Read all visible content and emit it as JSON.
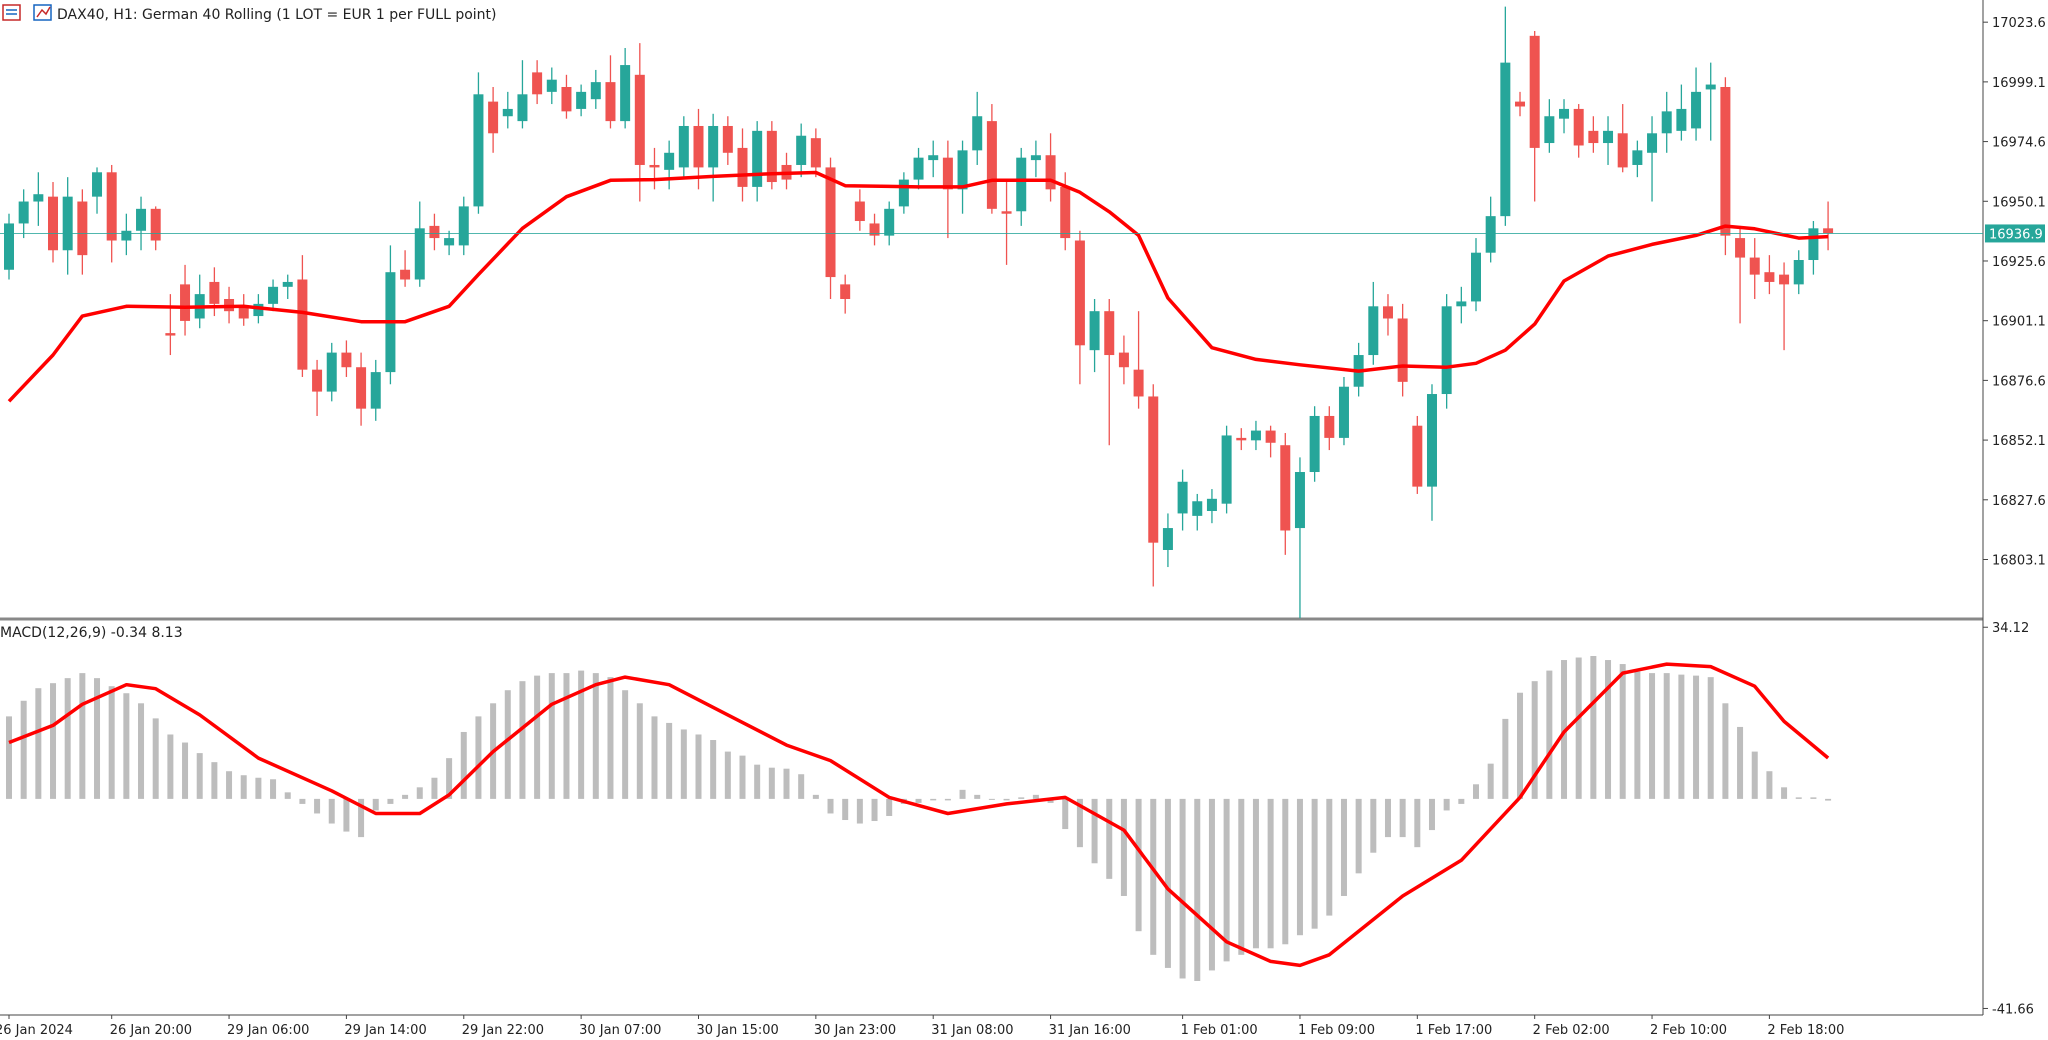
{
  "chart_data": [
    {
      "type": "candlestick",
      "title": "DAX40, H1:  German 40 Rolling (1 LOT = EUR 1 per FULL point)",
      "categories": [
        "26 Jan 2024",
        null,
        null,
        null,
        null,
        null,
        null,
        "26 Jan 20:00",
        null,
        null,
        null,
        null,
        null,
        null,
        null,
        "29 Jan 06:00",
        null,
        null,
        null,
        null,
        null,
        null,
        null,
        "29 Jan 14:00",
        null,
        null,
        null,
        null,
        null,
        null,
        null,
        "29 Jan 22:00",
        null,
        null,
        null,
        null,
        null,
        null,
        null,
        "30 Jan 07:00",
        null,
        null,
        null,
        null,
        null,
        null,
        null,
        "30 Jan 15:00",
        null,
        null,
        null,
        null,
        null,
        null,
        null,
        "30 Jan 23:00",
        null,
        null,
        null,
        null,
        null,
        null,
        null,
        "31 Jan 08:00",
        null,
        null,
        null,
        null,
        null,
        null,
        null,
        "31 Jan 16:00",
        null,
        null,
        null,
        null,
        null,
        null,
        null,
        null,
        "1 Feb 01:00",
        null,
        null,
        null,
        null,
        null,
        null,
        null,
        "1 Feb 09:00",
        null,
        null,
        null,
        null,
        null,
        null,
        null,
        "1 Feb 17:00",
        null,
        null,
        null,
        null,
        null,
        null,
        null,
        "2 Feb 02:00",
        null,
        null,
        null,
        null,
        null,
        null,
        null,
        "2 Feb 10:00",
        null,
        null,
        null,
        null,
        null,
        null,
        null,
        "2 Feb 18:00",
        null,
        null,
        null,
        null
      ],
      "open": [
        16922,
        16941,
        16950,
        16952,
        16930,
        16950,
        16952,
        16962,
        16934,
        16938,
        16947,
        16896,
        16916,
        16902,
        16917,
        16910,
        16907,
        16903,
        16908,
        16915,
        16918,
        16881,
        16872,
        16888,
        16882,
        16865,
        16880,
        16922,
        16918,
        16940,
        16932,
        16932,
        16948,
        16991,
        16985,
        16983,
        17003,
        16995,
        16997,
        16988,
        16992,
        16999,
        16983,
        17002,
        16965,
        16963,
        16964,
        16981,
        16964,
        16981,
        16972,
        16956,
        16979,
        16965,
        16965,
        16976,
        16964,
        16916,
        16950,
        16941,
        16936,
        16948,
        16959,
        16967,
        16968,
        16955,
        16971,
        16983,
        16946,
        16946,
        16967,
        16969,
        16956,
        16934,
        16889,
        16905,
        16888,
        16881,
        16870,
        16807,
        16822,
        16821,
        16823,
        16826,
        16853,
        16852,
        16856,
        16850,
        16816,
        16839,
        16862,
        16853,
        16874,
        16887,
        16907,
        16902,
        16858,
        16833,
        16871,
        16907,
        16909,
        16929,
        16944,
        16991,
        17018,
        16974,
        16984,
        16988,
        16979,
        16974,
        16978,
        16965,
        16970,
        16978,
        16979,
        16980,
        16996,
        16997,
        16935,
        16927,
        16921,
        16920,
        16916,
        16926,
        16939
      ],
      "high": [
        16945,
        16955,
        16962,
        16958,
        16960,
        16955,
        16964,
        16965,
        16945,
        16952,
        16948,
        16912,
        16924,
        16920,
        16923,
        16915,
        16912,
        16912,
        16918,
        16920,
        16928,
        16885,
        16892,
        16893,
        16888,
        16885,
        16932,
        16930,
        16950,
        16945,
        16938,
        16952,
        17003,
        16997,
        16995,
        17008,
        17008,
        17005,
        17002,
        16998,
        17004,
        17010,
        17013,
        17015,
        16972,
        16975,
        16985,
        16988,
        16986,
        16985,
        16980,
        16983,
        16983,
        16970,
        16982,
        16980,
        16968,
        16920,
        16955,
        16945,
        16950,
        16962,
        16972,
        16975,
        16975,
        16975,
        16995,
        16990,
        16958,
        16972,
        16975,
        16978,
        16962,
        16938,
        16910,
        16910,
        16895,
        16905,
        16875,
        16822,
        16840,
        16830,
        16832,
        16858,
        16857,
        16860,
        16858,
        16855,
        16845,
        16866,
        16866,
        16878,
        16892,
        16917,
        16912,
        16908,
        16862,
        16875,
        16912,
        16915,
        16935,
        16952,
        17030,
        16995,
        17020,
        16992,
        16992,
        16990,
        16985,
        16985,
        16990,
        16975,
        16985,
        16995,
        16998,
        17005,
        17007,
        17001,
        16940,
        16935,
        16928,
        16925,
        16930,
        16942,
        16950
      ],
      "low": [
        16918,
        16935,
        16940,
        16925,
        16920,
        16920,
        16945,
        16925,
        16928,
        16930,
        16930,
        16887,
        16895,
        16898,
        16903,
        16900,
        16899,
        16900,
        16905,
        16910,
        16878,
        16862,
        16868,
        16878,
        16858,
        16860,
        16875,
        16915,
        16915,
        16930,
        16928,
        16928,
        16945,
        16970,
        16980,
        16980,
        16990,
        16990,
        16984,
        16985,
        16988,
        16980,
        16980,
        16950,
        16955,
        16955,
        16960,
        16955,
        16950,
        16965,
        16950,
        16950,
        16955,
        16955,
        16960,
        16960,
        16910,
        16904,
        16938,
        16932,
        16932,
        16945,
        16955,
        16960,
        16935,
        16945,
        16965,
        16945,
        16924,
        16940,
        16960,
        16950,
        16930,
        16875,
        16880,
        16850,
        16875,
        16865,
        16792,
        16800,
        16815,
        16815,
        16818,
        16822,
        16848,
        16848,
        16845,
        16805,
        16779,
        16835,
        16848,
        16850,
        16870,
        16883,
        16895,
        16870,
        16830,
        16819,
        16865,
        16900,
        16905,
        16925,
        16940,
        16985,
        16950,
        16970,
        16978,
        16968,
        16970,
        16965,
        16962,
        16960,
        16950,
        16970,
        16975,
        16975,
        16975,
        16928,
        16900,
        16910,
        16912,
        16889,
        16912,
        16920,
        16930
      ],
      "close": [
        16941,
        16950,
        16953,
        16930,
        16952,
        16928,
        16962,
        16934,
        16938,
        16947,
        16934,
        16895,
        16901,
        16912,
        16908,
        16905,
        16902,
        16908,
        16915,
        16917,
        16881,
        16872,
        16888,
        16882,
        16865,
        16880,
        16921,
        16918,
        16939,
        16935,
        16935,
        16948,
        16994,
        16978,
        16988,
        16994,
        16994,
        17000,
        16987,
        16995,
        16999,
        16983,
        17006,
        16965,
        16964,
        16970,
        16981,
        16964,
        16981,
        16970,
        16956,
        16979,
        16958,
        16959,
        16977,
        16964,
        16919,
        16910,
        16942,
        16936,
        16947,
        16959,
        16968,
        16969,
        16955,
        16971,
        16985,
        16947,
        16945,
        16968,
        16969,
        16955,
        16935,
        16891,
        16905,
        16887,
        16882,
        16870,
        16810,
        16816,
        16835,
        16827,
        16828,
        16854,
        16852,
        16856,
        16851,
        16815,
        16839,
        16862,
        16853,
        16874,
        16887,
        16907,
        16902,
        16876,
        16833,
        16871,
        16907,
        16909,
        16929,
        16944,
        17007,
        16989,
        16972,
        16985,
        16988,
        16973,
        16974,
        16979,
        16964,
        16971,
        16978,
        16987,
        16988,
        16995,
        16998,
        16936,
        16927,
        16920,
        16917,
        16916,
        16926,
        16939,
        16937
      ],
      "up_color": "#26a69a",
      "down_color": "#ef5350",
      "overlay": {
        "color": "#ff0000",
        "x": [
          0,
          3,
          5,
          8,
          12,
          16,
          20,
          24,
          27,
          30,
          32,
          35,
          38,
          41,
          44,
          48,
          52,
          55,
          57,
          62,
          65,
          67,
          71,
          73,
          75,
          77,
          79,
          82,
          85,
          88,
          92,
          95,
          98,
          100,
          102,
          104,
          106,
          109,
          112,
          115,
          117,
          119,
          122,
          124
        ],
        "values": [
          16868,
          16887,
          16903,
          16907,
          16906.6,
          16907,
          16904.5,
          16900.7,
          16900.7,
          16907,
          16920,
          16939,
          16952,
          16958.7,
          16959,
          16960.3,
          16961.4,
          16961.9,
          16956.5,
          16956,
          16956,
          16958.7,
          16958.7,
          16953.8,
          16945.8,
          16936.1,
          16910.4,
          16890,
          16885.2,
          16883,
          16880.4,
          16882.5,
          16882,
          16883.6,
          16889,
          16899.7,
          16917.4,
          16927.6,
          16932.4,
          16936.1,
          16939.9,
          16938.8,
          16935,
          16935.6
        ]
      },
      "last_price": 16936.9,
      "last_price_color": "#26a69a",
      "ylim": [
        16779.5,
        17032.7
      ],
      "yticks": [
        17023.6,
        16999.1,
        16974.6,
        16950.1,
        16925.6,
        16901.1,
        16876.6,
        16852.1,
        16827.6,
        16803.1
      ]
    },
    {
      "type": "bar",
      "title": "MACD(12,26,9) -0.34 8.13",
      "color": "#bdbdbd",
      "values": [
        16.4,
        19.5,
        22,
        23,
        24,
        25,
        24,
        22.4,
        21,
        19,
        16,
        12.8,
        11.2,
        9.1,
        7.3,
        5.5,
        4.7,
        4.2,
        3.9,
        1.3,
        -1,
        -2.9,
        -4.9,
        -6.5,
        -7.6,
        -2.3,
        -1,
        0.8,
        2.3,
        4.2,
        8.1,
        13.3,
        16.4,
        19,
        21.6,
        23.4,
        24.5,
        25,
        25,
        25.5,
        25,
        24.2,
        21.6,
        19,
        16.4,
        15.1,
        13.8,
        12.8,
        11.7,
        9.4,
        8.6,
        6.8,
        6.2,
        6,
        4.9,
        0.8,
        -2.9,
        -4.2,
        -4.9,
        -4.4,
        -3.4,
        -1,
        -0.8,
        -0.3,
        -0.3,
        1.8,
        0.8,
        0,
        -0.3,
        0.3,
        0.8,
        -0.8,
        -6,
        -9.6,
        -12.8,
        -15.9,
        -19.3,
        -26.3,
        -31,
        -33.6,
        -35.7,
        -36.2,
        -34.1,
        -32.3,
        -31,
        -29.7,
        -29.7,
        -28.9,
        -27.1,
        -25.8,
        -23.2,
        -19.3,
        -14.8,
        -10.7,
        -7.6,
        -7.6,
        -9.6,
        -6.2,
        -2.3,
        -1,
        2.9,
        7,
        15.9,
        21.1,
        23.4,
        25.5,
        27.6,
        28.1,
        28.4,
        27.6,
        26.8,
        25.3,
        25,
        25,
        24.7,
        24.5,
        24.2,
        19,
        14.3,
        9.4,
        5.5,
        2.3,
        0.3,
        0.3,
        -0.34
      ],
      "signal": {
        "color": "#ff0000",
        "x": [
          0,
          3,
          5,
          8,
          10,
          13,
          17,
          22,
          25,
          28,
          30,
          33,
          37,
          40,
          42,
          45,
          49,
          53,
          56,
          60,
          64,
          68,
          72,
          76,
          79,
          83,
          86,
          88,
          90,
          95,
          99,
          103,
          106,
          110,
          113,
          116,
          119,
          121,
          124
        ],
        "values": [
          11.2,
          14.6,
          18.8,
          22.7,
          21.9,
          16.7,
          8.1,
          1.6,
          -2.9,
          -2.9,
          0.8,
          9.4,
          18.8,
          22.7,
          24.2,
          22.7,
          16.7,
          10.7,
          7.6,
          0.3,
          -2.9,
          -1,
          0.3,
          -6.2,
          -17.9,
          -28.4,
          -32.3,
          -33.1,
          -31,
          -19.3,
          -12.2,
          0.3,
          13.3,
          25,
          26.8,
          26.3,
          22.4,
          15.4,
          8.13
        ]
      },
      "ylim": [
        -42.96,
        35.16
      ],
      "yticks": [
        34.12,
        -41.66
      ]
    }
  ]
}
